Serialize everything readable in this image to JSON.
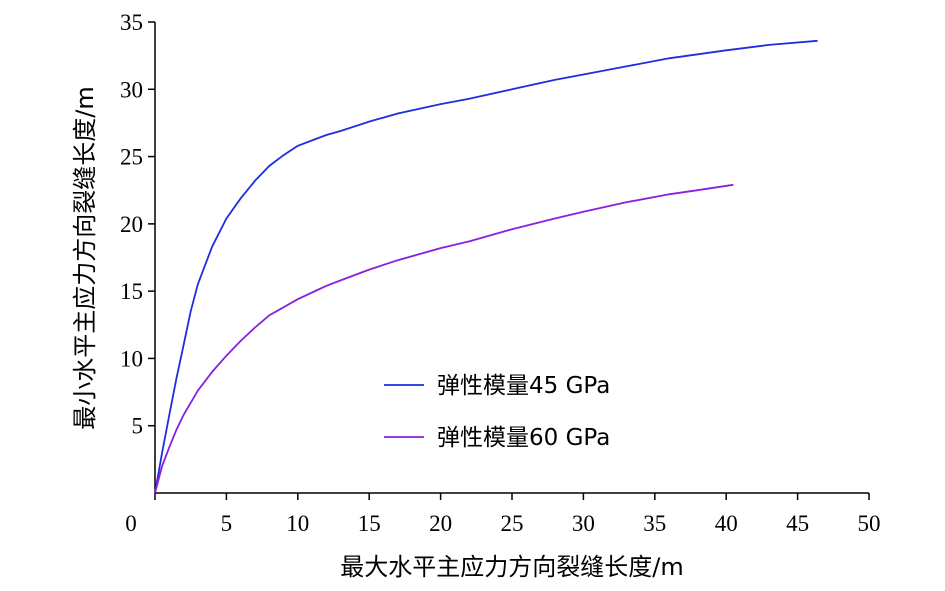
{
  "chart_data": {
    "type": "line",
    "xlabel": "最大水平主应力方向裂缝长度/m",
    "ylabel": "最小水平主应力方向裂缝长度/m",
    "xlim": [
      0,
      50
    ],
    "ylim": [
      0,
      35
    ],
    "x_ticks": [
      0,
      5,
      10,
      15,
      20,
      25,
      30,
      35,
      40,
      45,
      50
    ],
    "y_ticks": [
      5,
      10,
      15,
      20,
      25,
      30,
      35
    ],
    "grid": false,
    "legend_position": "center",
    "series": [
      {
        "name": "弹性模量45 GPa",
        "color": "#1f2de0",
        "x": [
          0,
          0.5,
          1,
          1.5,
          2,
          2.5,
          3,
          4,
          5,
          6,
          7,
          8,
          9,
          10,
          11,
          12,
          13,
          15,
          17,
          20,
          22,
          25,
          28,
          30,
          33,
          36,
          40,
          43,
          46.4
        ],
        "y": [
          0,
          3.0,
          5.8,
          8.5,
          11.0,
          13.5,
          15.5,
          18.3,
          20.4,
          21.9,
          23.2,
          24.3,
          25.1,
          25.8,
          26.2,
          26.6,
          26.9,
          27.6,
          28.2,
          28.9,
          29.3,
          30.0,
          30.7,
          31.1,
          31.7,
          32.3,
          32.9,
          33.3,
          33.6
        ]
      },
      {
        "name": "弹性模量60 GPa",
        "color": "#8a1fe0",
        "x": [
          0,
          0.5,
          1,
          1.5,
          2,
          3,
          4,
          5,
          6,
          7,
          8,
          9,
          10,
          11,
          12,
          13,
          15,
          17,
          20,
          22,
          25,
          28,
          30,
          33,
          36,
          38,
          40.5
        ],
        "y": [
          0,
          2.0,
          3.4,
          4.7,
          5.8,
          7.6,
          9.0,
          10.2,
          11.3,
          12.3,
          13.2,
          13.8,
          14.4,
          14.9,
          15.4,
          15.8,
          16.6,
          17.3,
          18.2,
          18.7,
          19.6,
          20.4,
          20.9,
          21.6,
          22.2,
          22.5,
          22.9
        ]
      }
    ]
  }
}
